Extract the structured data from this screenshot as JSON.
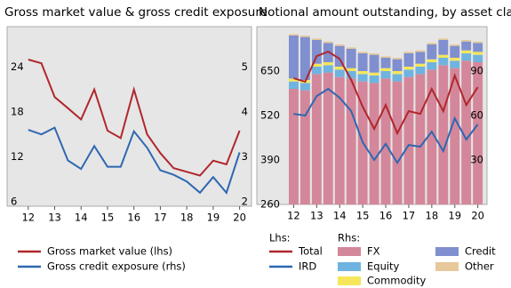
{
  "chart_data": [
    {
      "type": "line",
      "title": "Gross market value & gross credit exposure",
      "x": [
        12,
        12.5,
        13,
        13.5,
        14,
        14.5,
        15,
        15.5,
        16,
        16.5,
        17,
        17.5,
        18,
        18.5,
        19,
        19.5,
        20
      ],
      "xlim": [
        11.2,
        20.45
      ],
      "xticks": [
        12,
        13,
        14,
        15,
        16,
        17,
        18,
        19,
        20
      ],
      "ylim": [
        5.4,
        29.4
      ],
      "yticks": [
        6,
        12,
        18,
        24
      ],
      "y2lim": [
        1.9,
        5.9
      ],
      "y2ticks": [
        2,
        3,
        4,
        5
      ],
      "series": [
        {
          "name": "Gross market value (lhs)",
          "color": "#b0272d",
          "kind": "line",
          "axis": "y",
          "values": [
            25,
            24.5,
            20,
            18.5,
            17,
            21,
            15.5,
            14.5,
            21,
            15,
            12.5,
            10.5,
            10,
            9.5,
            11.5,
            11,
            15.5
          ]
        },
        {
          "name": "Gross credit exposure (rhs)",
          "color": "#2f67b1",
          "kind": "line",
          "axis": "y2",
          "values": [
            3.6,
            3.5,
            3.65,
            2.92,
            2.73,
            3.24,
            2.78,
            2.78,
            3.57,
            3.2,
            2.7,
            2.6,
            2.45,
            2.2,
            2.55,
            2.2,
            3.1
          ]
        }
      ]
    },
    {
      "type": "combo",
      "title": "Notional amount outstanding, by asset class",
      "lhs_label": "Lhs:",
      "rhs_label": "Rhs:",
      "stacked": true,
      "x": [
        12,
        12.5,
        13,
        13.5,
        14,
        14.5,
        15,
        15.5,
        16,
        16.5,
        17,
        17.5,
        18,
        18.5,
        19,
        19.5,
        20
      ],
      "xlim": [
        10.4,
        20.4
      ],
      "xticks": [
        12,
        13,
        14,
        15,
        16,
        17,
        18,
        19,
        20
      ],
      "ylim": [
        260,
        780
      ],
      "yticks": [
        260,
        390,
        520,
        650
      ],
      "y2lim": [
        0,
        120
      ],
      "y2ticks": [
        30,
        60,
        90
      ],
      "series": [
        {
          "name": "FX",
          "color": "#d4879a",
          "kind": "bar",
          "axis": "y2",
          "values": [
            78,
            77,
            88,
            89,
            86,
            85,
            83,
            82,
            85,
            83,
            86,
            88,
            91,
            94,
            92,
            97,
            96
          ]
        },
        {
          "name": "Equity",
          "color": "#6fb3e0",
          "kind": "bar",
          "axis": "y2",
          "values": [
            5,
            5,
            5,
            5,
            5,
            5,
            5,
            5,
            5,
            5,
            5,
            5,
            5,
            5,
            5,
            5,
            5
          ]
        },
        {
          "name": "Commodity",
          "color": "#f5e65a",
          "kind": "bar",
          "axis": "y2",
          "values": [
            2,
            2,
            2,
            2,
            2,
            2,
            2,
            2,
            2,
            2,
            2,
            2,
            2,
            2,
            2,
            2,
            2
          ]
        },
        {
          "name": "Credit",
          "color": "#7f8fcf",
          "kind": "bar",
          "axis": "y2",
          "values": [
            29,
            29,
            16,
            13,
            14,
            13,
            12,
            12,
            7,
            8,
            9,
            8,
            10,
            10,
            8,
            6,
            6
          ]
        },
        {
          "name": "Other",
          "color": "#e6c89a",
          "kind": "bar",
          "axis": "y2",
          "values": [
            1,
            1,
            1,
            1,
            1,
            1,
            1,
            1,
            1,
            1,
            1,
            1,
            1,
            1,
            1,
            1,
            1
          ]
        },
        {
          "name": "Total",
          "color": "#b0272d",
          "kind": "line",
          "axis": "y",
          "values": [
            629,
            619,
            694,
            707,
            686,
            624,
            546,
            481,
            551,
            468,
            533,
            525,
            598,
            533,
            637,
            551,
            603
          ]
        },
        {
          "name": "IRD",
          "color": "#2f67b1",
          "kind": "line",
          "axis": "y",
          "values": [
            525,
            520,
            577,
            598,
            572,
            533,
            442,
            390,
            437,
            382,
            434,
            429,
            473,
            416,
            512,
            450,
            494
          ]
        }
      ]
    }
  ]
}
